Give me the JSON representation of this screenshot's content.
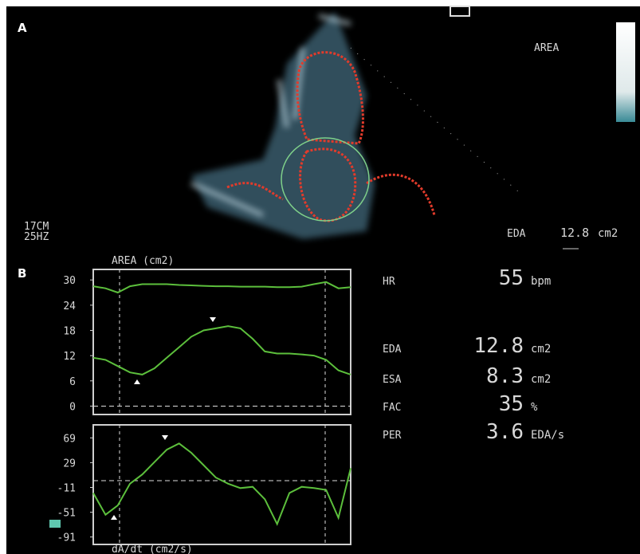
{
  "panel_a": {
    "label": "A",
    "mode": "AREA",
    "depth": "17CM",
    "frequency": "25HZ",
    "eda_label": "EDA",
    "eda_value": "12.8",
    "eda_unit": "cm2"
  },
  "panel_b": {
    "label": "B"
  },
  "readouts": [
    {
      "name": "HR",
      "value": 55,
      "unit": "bpm"
    },
    {
      "name": "EDA",
      "value": 12.8,
      "unit": "cm2"
    },
    {
      "name": "ESA",
      "value": 8.3,
      "unit": "cm2"
    },
    {
      "name": "FAC",
      "value": 35,
      "unit": "%"
    },
    {
      "name": "PER",
      "value": 3.6,
      "unit": "EDA/s"
    }
  ],
  "chart_data": [
    {
      "type": "line",
      "title": "AREA (cm2)",
      "ylim": [
        -2,
        32.5
      ],
      "yticks": [
        0,
        6,
        12,
        18,
        24,
        30
      ],
      "series": [
        {
          "color": "#5cbf3c",
          "values": [
            28.5,
            28,
            27,
            28.5,
            29,
            29,
            29,
            28.8,
            28.7,
            28.6,
            28.5,
            28.5,
            28.4,
            28.4,
            28.4,
            28.3,
            28.3,
            28.4,
            29,
            29.5,
            28,
            28.3
          ]
        },
        {
          "color": "#5cbf3c",
          "values": [
            11.5,
            11,
            9.5,
            8,
            7.5,
            9,
            11.5,
            14,
            16.5,
            18,
            18.5,
            19,
            18.5,
            16,
            13,
            12.5,
            12.5,
            12.3,
            12,
            11,
            8.5,
            7.5
          ]
        }
      ]
    },
    {
      "type": "line",
      "title": "dA/dt (cm2/s)",
      "ylim": [
        -103,
        90
      ],
      "yticks": [
        69,
        29,
        -11,
        -51,
        -91
      ],
      "series": [
        {
          "color": "#5cbf3c",
          "values": [
            -20,
            -55,
            -40,
            -5,
            10,
            30,
            50,
            60,
            45,
            25,
            5,
            -5,
            -12,
            -10,
            -30,
            -70,
            -20,
            -10,
            -12,
            -15,
            -60,
            20
          ]
        }
      ]
    }
  ]
}
